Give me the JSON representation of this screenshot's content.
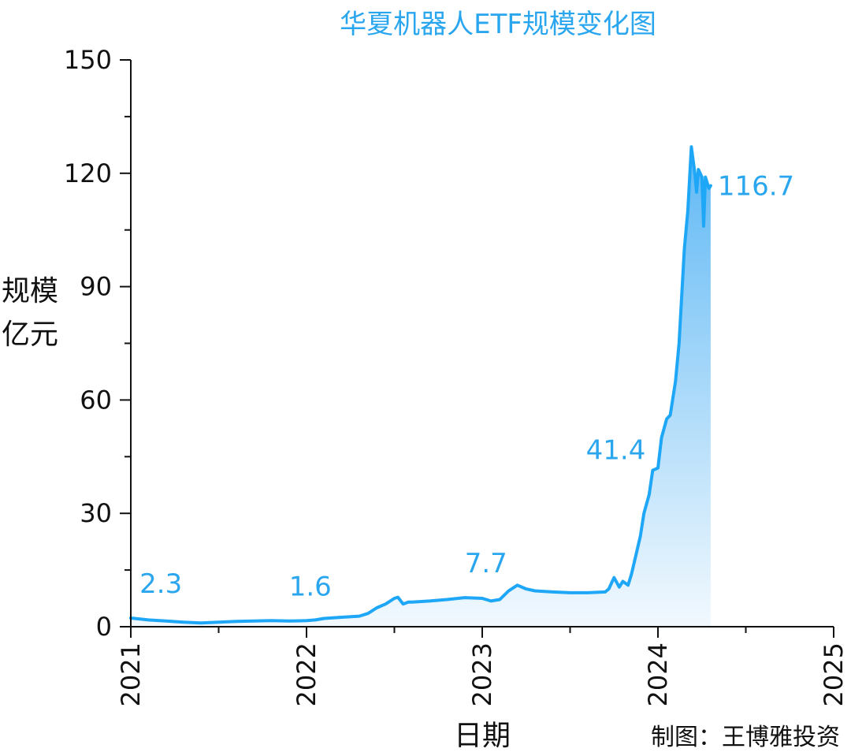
{
  "chart_data": {
    "type": "area",
    "title": "华夏机器人ETF规模变化图",
    "ylabel_lines": [
      "规模",
      "亿元"
    ],
    "xlabel": "日期",
    "credit": "制图：王博雅投资",
    "x_ticks": [
      "2021",
      "2022",
      "2023",
      "2024",
      "2025"
    ],
    "y_ticks": [
      0,
      30,
      60,
      90,
      120,
      150
    ],
    "xlim": [
      2021.0,
      2025.0
    ],
    "ylim": [
      0,
      150
    ],
    "grid": false,
    "line_color": "#1ea7f7",
    "fill_top_color": "#5fb8f5",
    "fill_bottom_color": "#f2f9fe",
    "series": [
      {
        "x": [
          2021.0,
          2021.1,
          2021.2,
          2021.3,
          2021.4,
          2021.5,
          2021.6,
          2021.7,
          2021.8,
          2021.9,
          2022.0,
          2022.05,
          2022.1,
          2022.2,
          2022.3,
          2022.35,
          2022.4,
          2022.45,
          2022.5,
          2022.52,
          2022.55,
          2022.58,
          2022.6,
          2022.7,
          2022.8,
          2022.9,
          2023.0,
          2023.05,
          2023.1,
          2023.15,
          2023.2,
          2023.25,
          2023.3,
          2023.4,
          2023.5,
          2023.6,
          2023.7,
          2023.72,
          2023.75,
          2023.78,
          2023.8,
          2023.83,
          2023.85,
          2023.87,
          2023.9,
          2023.92,
          2023.95,
          2023.97,
          2024.0,
          2024.02,
          2024.05,
          2024.07,
          2024.1,
          2024.12,
          2024.15,
          2024.17,
          2024.19,
          2024.21,
          2024.22,
          2024.23,
          2024.25,
          2024.26,
          2024.27,
          2024.29,
          2024.3
        ],
        "y": [
          2.3,
          1.8,
          1.5,
          1.2,
          1.0,
          1.2,
          1.4,
          1.5,
          1.6,
          1.5,
          1.6,
          1.8,
          2.2,
          2.5,
          2.8,
          3.5,
          5.0,
          6.0,
          7.5,
          7.8,
          6.0,
          6.5,
          6.5,
          6.8,
          7.2,
          7.7,
          7.5,
          6.8,
          7.2,
          9.5,
          11.0,
          10.0,
          9.5,
          9.2,
          9.0,
          9.0,
          9.2,
          10.0,
          13.0,
          10.5,
          12.0,
          11.0,
          14.0,
          18.0,
          24.0,
          30.0,
          35.0,
          41.4,
          42.0,
          50.0,
          55.0,
          56.0,
          65.0,
          75.0,
          100.0,
          110.0,
          127.0,
          120.0,
          115.0,
          121.0,
          119.0,
          106.0,
          119.0,
          116.0,
          116.7
        ]
      }
    ],
    "annotations": [
      {
        "x": 2021.05,
        "y": 2.3,
        "text": "2.3"
      },
      {
        "x": 2021.9,
        "y": 1.6,
        "text": "1.6"
      },
      {
        "x": 2022.9,
        "y": 7.7,
        "text": "7.7"
      },
      {
        "x": 2023.93,
        "y": 41.4,
        "text": "41.4"
      },
      {
        "x": 2024.34,
        "y": 116.7,
        "text": "116.7"
      }
    ]
  }
}
